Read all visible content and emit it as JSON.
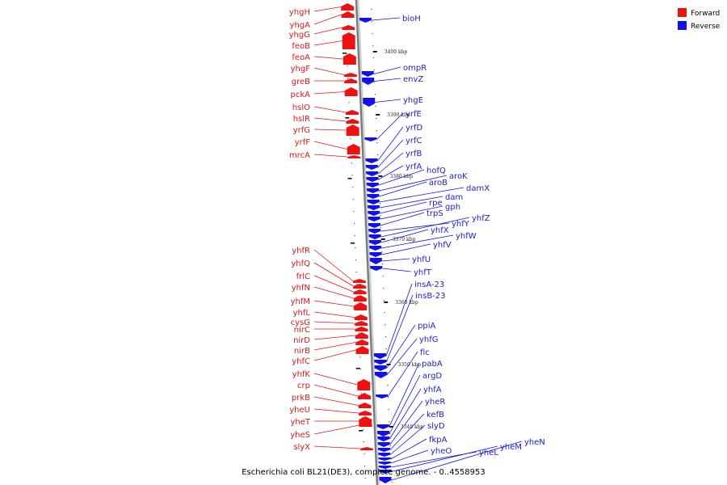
{
  "caption": "Escherichia coli BL21(DE3), complete genome. - 0..4558953",
  "legend": {
    "forward": {
      "label": "Forward",
      "color": "#ee1111"
    },
    "reverse": {
      "label": "Reverse",
      "color": "#1111ee"
    }
  },
  "scale_ticks": [
    "3400 kbp",
    "3390 kbp",
    "3380 kbp",
    "3370 kbp",
    "3360 kbp",
    "3350 kbp",
    "3340 kbp"
  ],
  "forward_genes": [
    "yhgH",
    "yhgA",
    "yhgG",
    "feoB",
    "feoA",
    "yhgF",
    "greB",
    "pckA",
    "hslO",
    "hslR",
    "yrfG",
    "yrfF",
    "mrcA",
    "yhfR",
    "yhfQ",
    "frlC",
    "yhfN",
    "yhfM",
    "yhfL",
    "cysG",
    "nirC",
    "nirD",
    "nirB",
    "yhfC",
    "yhfK",
    "crp",
    "prkB",
    "yheU",
    "yheT",
    "yheS",
    "slyX"
  ],
  "reverse_genes": [
    "bioH",
    "ompR",
    "envZ",
    "yhgE",
    "yrfE",
    "yrfD",
    "yrfC",
    "yrfB",
    "yrfA",
    "hofQ",
    "aroK",
    "aroB",
    "damX",
    "dam",
    "rpe",
    "gph",
    "trpS",
    "yhfY",
    "yhfZ",
    "yhfX",
    "yhfW",
    "yhfV",
    "yhfU",
    "yhfT",
    "insA-23",
    "insB-23",
    "ppiA",
    "yhfG",
    "fic",
    "pabA",
    "argD",
    "yhfA",
    "yheR",
    "kefB",
    "slyD",
    "fkpA",
    "yheO",
    "yheL",
    "yheM",
    "yheN"
  ]
}
